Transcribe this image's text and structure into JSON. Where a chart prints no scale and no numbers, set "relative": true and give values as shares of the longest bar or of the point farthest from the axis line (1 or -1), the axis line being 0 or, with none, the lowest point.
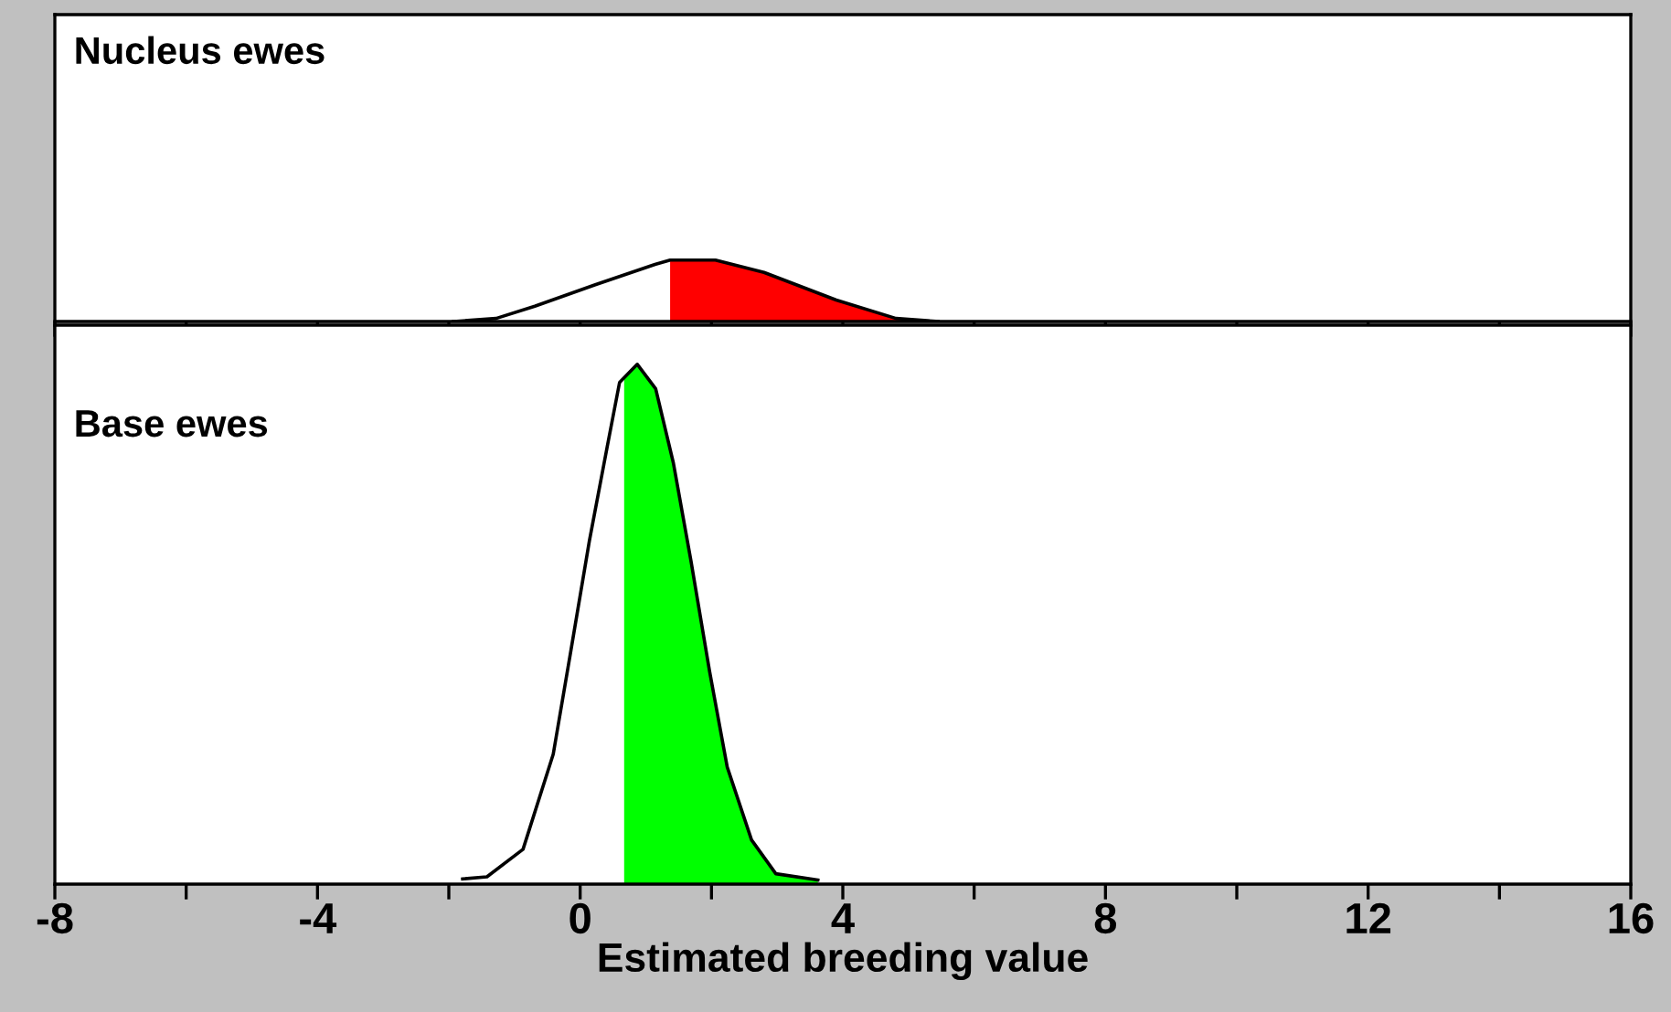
{
  "chart_data": [
    {
      "type": "line",
      "title": "Nucleus ewes",
      "relative": true,
      "xlim": [
        -8,
        16
      ],
      "tick_labels": false,
      "xticks": [
        {
          "value": -8,
          "label": null
        },
        {
          "value": -6,
          "label": null
        },
        {
          "value": -4,
          "label": null
        },
        {
          "value": -2,
          "label": null
        },
        {
          "value": 0,
          "label": null
        },
        {
          "value": 2,
          "label": null
        },
        {
          "value": 4,
          "label": null
        },
        {
          "value": 6,
          "label": null
        },
        {
          "value": 8,
          "label": null
        },
        {
          "value": 10,
          "label": null
        },
        {
          "value": 12,
          "label": null
        },
        {
          "value": 14,
          "label": null
        },
        {
          "value": 16,
          "label": null
        }
      ],
      "series": [
        {
          "type": "area",
          "color": "#ff0000",
          "x": [
            1.37,
            2.06,
            2.8,
            3.9,
            4.81,
            5.45
          ],
          "values": [
            1.0,
            1.0,
            0.8,
            0.35,
            0.05,
            0
          ]
        },
        {
          "color": "#000000",
          "x": [
            -1.93,
            -1.28,
            -0.69,
            0.23,
            1.14,
            1.37,
            2.06,
            2.8,
            3.9,
            4.81,
            5.45
          ],
          "values": [
            0,
            0.05,
            0.25,
            0.6,
            0.93,
            1.0,
            1.0,
            0.8,
            0.35,
            0.05,
            0
          ]
        }
      ]
    },
    {
      "type": "line",
      "title": "Base ewes",
      "xlabel": "Estimated breeding value",
      "relative": true,
      "xlim": [
        -8,
        16
      ],
      "tick_labels": "x",
      "xticks": [
        -8,
        {
          "value": -6,
          "label": null
        },
        -4,
        {
          "value": -2,
          "label": null
        },
        0,
        {
          "value": 2,
          "label": null
        },
        4,
        {
          "value": 6,
          "label": null
        },
        8,
        {
          "value": 10,
          "label": null
        },
        12,
        {
          "value": 14,
          "label": null
        },
        16
      ],
      "series": [
        {
          "type": "area",
          "color": "#00ff00",
          "x": [
            0.67,
            0.87,
            1.15,
            1.42,
            1.69,
            1.97,
            2.24,
            2.61,
            2.98,
            3.62
          ],
          "values": [
            0.975,
            1.0,
            0.953,
            0.81,
            0.62,
            0.41,
            0.225,
            0.085,
            0.02,
            0.008
          ]
        },
        {
          "color": "#000000",
          "x": [
            -1.79,
            -1.42,
            -0.87,
            -0.41,
            -0.14,
            0.14,
            0.41,
            0.6,
            0.87,
            1.15,
            1.42,
            1.69,
            1.97,
            2.24,
            2.61,
            2.98,
            3.62
          ],
          "values": [
            0.01,
            0.014,
            0.067,
            0.25,
            0.45,
            0.66,
            0.84,
            0.965,
            1.0,
            0.953,
            0.81,
            0.62,
            0.41,
            0.225,
            0.085,
            0.02,
            0.008
          ]
        }
      ]
    }
  ]
}
